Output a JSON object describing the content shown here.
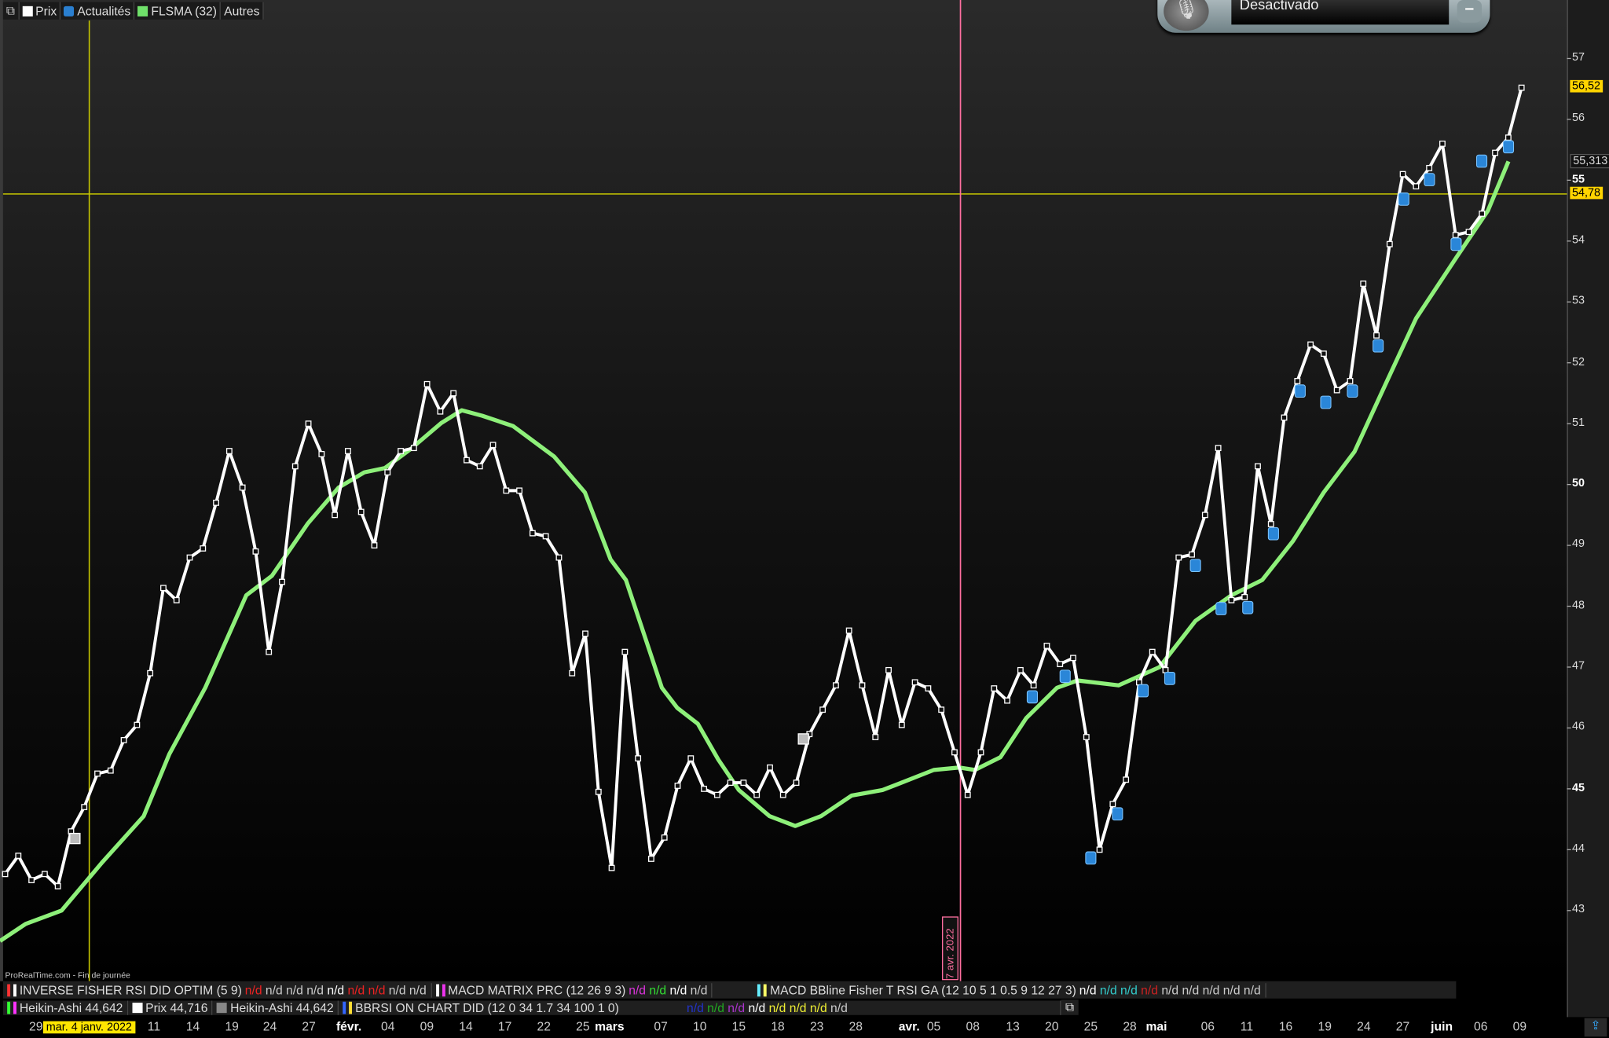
{
  "top_legend": {
    "price": "Prix",
    "news": "Actualités",
    "sma": "FLSMA (32)",
    "others": "Autres"
  },
  "voice_widget": {
    "status": "Desactivado"
  },
  "source_note": "ProRealTime.com - Fin de journée",
  "colors": {
    "price": "#ffffff",
    "sma": "#8ef07a",
    "crosshair": "#c8c800",
    "event_line": "#ff6fa0",
    "badge": "#ffd400"
  },
  "indicators_row1": [
    {
      "label": "INVERSE FISHER RSI DID OPTIM (5 9)",
      "values": [
        "n/d",
        "n/d",
        "n/d",
        "n/d",
        "n/d",
        "n/d",
        "n/d",
        "n/d",
        "n/d"
      ]
    },
    {
      "label": "MACD MATRIX PRC (12 26 9 3)",
      "values": [
        "n/d",
        "n/d",
        "n/d",
        "n/d"
      ]
    },
    {
      "label": "MACD  BBline  Fisher T RSI  GA (12 10 5 1 0.5 9 12 27 3)",
      "values": [
        "n/d",
        "n/d",
        "n/d",
        "n/d",
        "n/d",
        "n/d",
        "n/d",
        "n/d",
        "n/d"
      ]
    }
  ],
  "indicators_row2": [
    {
      "label": "Heikin-Ashi 44,642"
    },
    {
      "label": "Prix 44,716"
    },
    {
      "label": "Heikin-Ashi 44,642"
    },
    {
      "label": "BBRSI ON CHART DID (12 0 34 1.7 34 100 1 0)",
      "values": [
        "n/d",
        "n/d",
        "n/d",
        "n/d",
        "n/d",
        "n/d",
        "n/d",
        "n/d"
      ]
    }
  ],
  "crosshair": {
    "date_label": "mar. 4 janv. 2022",
    "price_label": "54,78"
  },
  "event_line": {
    "label": "7 avr. 2022"
  },
  "chart_data": {
    "type": "line",
    "y_axis": {
      "ticks": [
        "57",
        "56",
        "55",
        "54",
        "53",
        "52",
        "51",
        "50",
        "49",
        "48",
        "47",
        "46",
        "45",
        "44",
        "43"
      ],
      "range": [
        42.4,
        57.9
      ],
      "position": "right"
    },
    "x_axis": {
      "ticks": [
        "29",
        "11",
        "14",
        "19",
        "24",
        "27",
        "févr.",
        "04",
        "09",
        "14",
        "17",
        "22",
        "25",
        "mars",
        "07",
        "10",
        "15",
        "18",
        "23",
        "28",
        "avr.",
        "05",
        "08",
        "13",
        "20",
        "25",
        "28",
        "mai",
        "06",
        "11",
        "16",
        "19",
        "24",
        "27",
        "juin",
        "06",
        "09"
      ]
    },
    "last_price_label": "56,52",
    "sma_label": "55,313",
    "series": [
      {
        "name": "Prix",
        "values": [
          43.6,
          43.9,
          43.5,
          43.6,
          43.4,
          44.3,
          44.7,
          45.25,
          45.3,
          45.8,
          46.05,
          46.9,
          48.3,
          48.1,
          48.8,
          48.95,
          49.7,
          50.55,
          49.95,
          48.9,
          47.25,
          48.4,
          50.3,
          51.0,
          50.5,
          49.5,
          50.55,
          49.55,
          49.0,
          50.2,
          50.55,
          50.6,
          51.65,
          51.2,
          51.5,
          50.4,
          50.3,
          50.65,
          49.9,
          49.9,
          49.2,
          49.15,
          48.8,
          46.9,
          47.55,
          44.95,
          43.7,
          47.25,
          45.5,
          43.85,
          44.2,
          45.05,
          45.5,
          45.0,
          44.9,
          45.1,
          45.1,
          44.9,
          45.35,
          44.9,
          45.1,
          45.9,
          46.3,
          46.7,
          47.6,
          46.7,
          45.85,
          46.95,
          46.05,
          46.75,
          46.65,
          46.3,
          45.6,
          44.9,
          45.6,
          46.65,
          46.45,
          46.95,
          46.7,
          47.35,
          47.05,
          47.15,
          45.85,
          44.0,
          44.75,
          45.15,
          46.75,
          47.25,
          46.95,
          48.8,
          48.85,
          49.5,
          50.6,
          48.1,
          48.15,
          50.3,
          49.35,
          51.1,
          51.7,
          52.3,
          52.15,
          51.55,
          51.7,
          53.3,
          52.45,
          53.95,
          55.1,
          54.9,
          55.2,
          55.6,
          54.1,
          54.15,
          54.45,
          55.45,
          55.7,
          56.52
        ]
      },
      {
        "name": "FLSMA (32)",
        "values": [
          42.5,
          42.78,
          43.0,
          43.8,
          44.55,
          45.57,
          46.66,
          48.18,
          48.5,
          49.36,
          49.95,
          50.2,
          50.27,
          50.58,
          51.01,
          51.22,
          51.13,
          50.96,
          50.46,
          49.87,
          48.77,
          48.43,
          47.42,
          46.66,
          46.33,
          46.07,
          45.48,
          44.98,
          44.55,
          44.39,
          44.55,
          44.89,
          44.98,
          45.11,
          45.31,
          45.35,
          45.31,
          45.52,
          46.16,
          46.66,
          46.78,
          46.7,
          47.0,
          47.76,
          48.18,
          48.43,
          49.07,
          49.87,
          50.54,
          51.64,
          52.73,
          53.75,
          54.5,
          55.31
        ]
      }
    ]
  }
}
